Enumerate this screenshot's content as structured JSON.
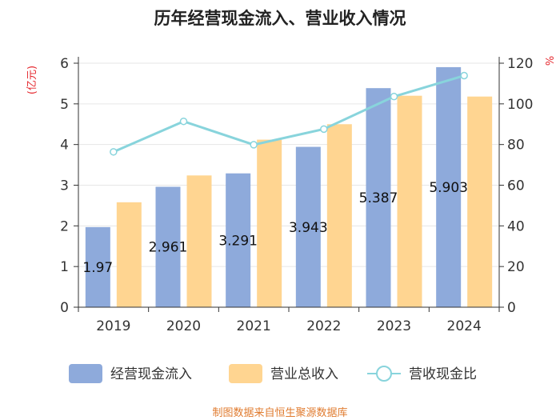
{
  "colors": {
    "inflow": "#8eaadb",
    "revenue": "#ffd591",
    "ratio": "#88d4dc",
    "accent_red": "#e5262c",
    "source": "#e07b2f"
  },
  "chart_data": {
    "type": "bar",
    "title": "历年经营现金流入、营业收入情况",
    "categories": [
      "2019",
      "2020",
      "2021",
      "2022",
      "2023",
      "2024"
    ],
    "series": [
      {
        "name": "经营现金流入",
        "type": "bar",
        "axis": "left",
        "values": [
          1.97,
          2.961,
          3.291,
          3.943,
          5.387,
          5.903
        ],
        "labels": [
          "1.97",
          "2.961",
          "3.291",
          "3.943",
          "5.387",
          "5.903"
        ]
      },
      {
        "name": "营业总收入",
        "type": "bar",
        "axis": "left",
        "values": [
          2.58,
          3.24,
          4.12,
          4.5,
          5.2,
          5.18
        ]
      },
      {
        "name": "营收现金比",
        "type": "line",
        "axis": "right",
        "values": [
          76.4,
          91.4,
          79.9,
          87.6,
          103.6,
          113.9
        ]
      }
    ],
    "ylabel": "(亿元)",
    "y2label": "%",
    "ylim": [
      0,
      6
    ],
    "y2lim": [
      0,
      120
    ],
    "yticks": [
      "0",
      "1",
      "2",
      "3",
      "4",
      "5",
      "6"
    ],
    "y2ticks": [
      "0",
      "20",
      "40",
      "60",
      "80",
      "100",
      "120"
    ],
    "grid": true,
    "legend_position": "bottom-center"
  },
  "source": "制图数据来自恒生聚源数据库"
}
